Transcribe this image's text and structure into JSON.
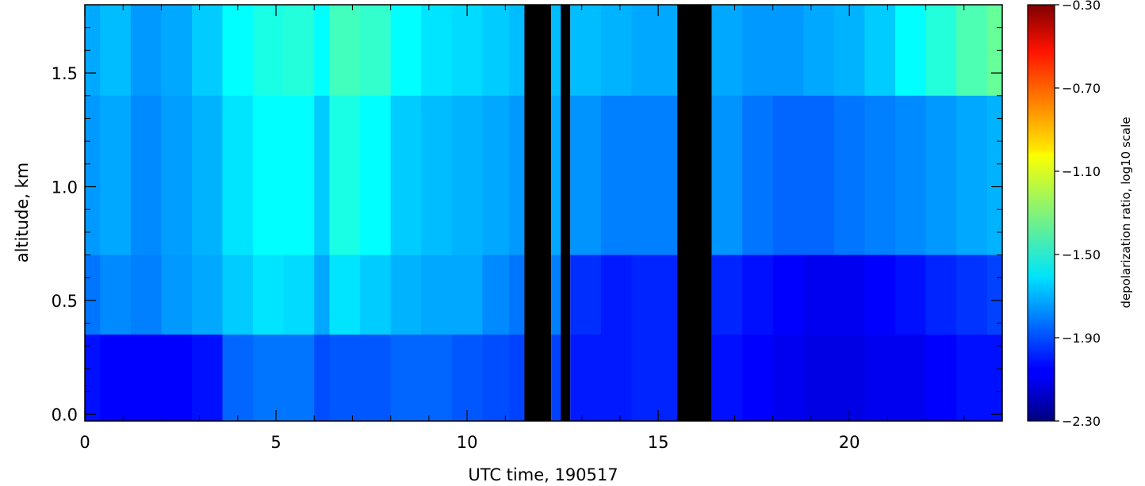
{
  "chart_data": {
    "type": "heatmap",
    "title": "",
    "xlabel": "UTC time, 190517",
    "ylabel": "altitude, km",
    "xlim": [
      0,
      24
    ],
    "ylim": [
      -0.03,
      1.8
    ],
    "x_ticks": [
      0,
      5,
      10,
      15,
      20
    ],
    "x_tick_labels": [
      "0",
      "5",
      "10",
      "15",
      "20"
    ],
    "y_ticks": [
      0.0,
      0.5,
      1.0,
      1.5
    ],
    "y_tick_labels": [
      "0.0",
      "0.5",
      "1.0",
      "1.5"
    ],
    "colorbar": {
      "label": "depolarization ratio, log10 scale",
      "range": [
        -2.3,
        -0.3
      ],
      "ticks": [
        -2.3,
        -1.9,
        -1.5,
        -1.1,
        -0.7,
        -0.3
      ],
      "tick_labels": [
        "−2.30",
        "−1.90",
        "−1.50",
        "−1.10",
        "−0.70",
        "−0.30"
      ],
      "colormap": "jet"
    },
    "no_data_color": "#000000",
    "time_columns": [
      {
        "t0": 0.0,
        "t1": 0.4,
        "top": -1.72,
        "upper": -1.75,
        "middle": -1.82,
        "bottom": -2.02
      },
      {
        "t0": 0.4,
        "t1": 1.2,
        "top": -1.68,
        "upper": -1.72,
        "middle": -1.78,
        "bottom": -2.05
      },
      {
        "t0": 1.2,
        "t1": 2.0,
        "top": -1.75,
        "upper": -1.78,
        "middle": -1.8,
        "bottom": -2.05
      },
      {
        "t0": 2.0,
        "t1": 2.8,
        "top": -1.72,
        "upper": -1.74,
        "middle": -1.75,
        "bottom": -2.05
      },
      {
        "t0": 2.8,
        "t1": 3.6,
        "top": -1.65,
        "upper": -1.7,
        "middle": -1.72,
        "bottom": -2.02
      },
      {
        "t0": 3.6,
        "t1": 4.4,
        "top": -1.55,
        "upper": -1.6,
        "middle": -1.65,
        "bottom": -1.85
      },
      {
        "t0": 4.4,
        "t1": 5.2,
        "top": -1.5,
        "upper": -1.55,
        "middle": -1.6,
        "bottom": -1.82
      },
      {
        "t0": 5.2,
        "t1": 6.0,
        "top": -1.48,
        "upper": -1.55,
        "middle": -1.62,
        "bottom": -1.82
      },
      {
        "t0": 6.0,
        "t1": 6.4,
        "top": -1.55,
        "upper": -1.65,
        "middle": -1.72,
        "bottom": -1.9
      },
      {
        "t0": 6.4,
        "t1": 7.2,
        "top": -1.42,
        "upper": -1.5,
        "middle": -1.6,
        "bottom": -1.88
      },
      {
        "t0": 7.2,
        "t1": 8.0,
        "top": -1.45,
        "upper": -1.55,
        "middle": -1.65,
        "bottom": -1.88
      },
      {
        "t0": 8.0,
        "t1": 8.8,
        "top": -1.55,
        "upper": -1.65,
        "middle": -1.7,
        "bottom": -1.85
      },
      {
        "t0": 8.8,
        "t1": 9.6,
        "top": -1.6,
        "upper": -1.68,
        "middle": -1.72,
        "bottom": -1.85
      },
      {
        "t0": 9.6,
        "t1": 10.4,
        "top": -1.62,
        "upper": -1.7,
        "middle": -1.72,
        "bottom": -1.88
      },
      {
        "t0": 10.4,
        "t1": 11.1,
        "top": -1.65,
        "upper": -1.72,
        "middle": -1.78,
        "bottom": -1.9
      },
      {
        "t0": 11.1,
        "t1": 11.5,
        "top": -1.68,
        "upper": -1.75,
        "middle": -1.82,
        "bottom": -1.92
      },
      {
        "t0": 11.5,
        "t1": 12.2,
        "nodata": true
      },
      {
        "t0": 12.2,
        "t1": 12.45,
        "top": -1.68,
        "upper": -1.72,
        "middle": -1.8,
        "bottom": -1.92
      },
      {
        "t0": 12.45,
        "t1": 12.7,
        "nodata": true
      },
      {
        "t0": 12.7,
        "t1": 13.5,
        "top": -1.68,
        "upper": -1.76,
        "middle": -1.96,
        "bottom": -2.0
      },
      {
        "t0": 13.5,
        "t1": 14.3,
        "top": -1.7,
        "upper": -1.8,
        "middle": -2.0,
        "bottom": -2.0
      },
      {
        "t0": 14.3,
        "t1": 15.5,
        "top": -1.72,
        "upper": -1.8,
        "middle": -1.98,
        "bottom": -1.98
      },
      {
        "t0": 15.5,
        "t1": 16.4,
        "nodata": true
      },
      {
        "t0": 16.4,
        "t1": 17.2,
        "top": -1.72,
        "upper": -1.76,
        "middle": -1.98,
        "bottom": -2.02
      },
      {
        "t0": 17.2,
        "t1": 18.0,
        "top": -1.75,
        "upper": -1.82,
        "middle": -2.02,
        "bottom": -2.05
      },
      {
        "t0": 18.0,
        "t1": 18.8,
        "top": -1.75,
        "upper": -1.85,
        "middle": -2.05,
        "bottom": -2.08
      },
      {
        "t0": 18.8,
        "t1": 19.6,
        "top": -1.72,
        "upper": -1.85,
        "middle": -2.08,
        "bottom": -2.1
      },
      {
        "t0": 19.6,
        "t1": 20.4,
        "top": -1.7,
        "upper": -1.82,
        "middle": -2.08,
        "bottom": -2.1
      },
      {
        "t0": 20.4,
        "t1": 21.2,
        "top": -1.65,
        "upper": -1.8,
        "middle": -2.05,
        "bottom": -2.08
      },
      {
        "t0": 21.2,
        "t1": 22.0,
        "top": -1.55,
        "upper": -1.78,
        "middle": -2.02,
        "bottom": -2.08
      },
      {
        "t0": 22.0,
        "t1": 22.8,
        "top": -1.48,
        "upper": -1.75,
        "middle": -1.98,
        "bottom": -2.05
      },
      {
        "t0": 22.8,
        "t1": 23.6,
        "top": -1.4,
        "upper": -1.72,
        "middle": -1.95,
        "bottom": -2.02
      },
      {
        "t0": 23.6,
        "t1": 24.0,
        "top": -1.35,
        "upper": -1.7,
        "middle": -1.92,
        "bottom": -2.02
      }
    ],
    "altitude_layers": {
      "top": [
        1.4,
        1.8
      ],
      "upper": [
        0.7,
        1.4
      ],
      "middle": [
        0.35,
        0.7
      ],
      "bottom": [
        -0.03,
        0.35
      ]
    }
  }
}
